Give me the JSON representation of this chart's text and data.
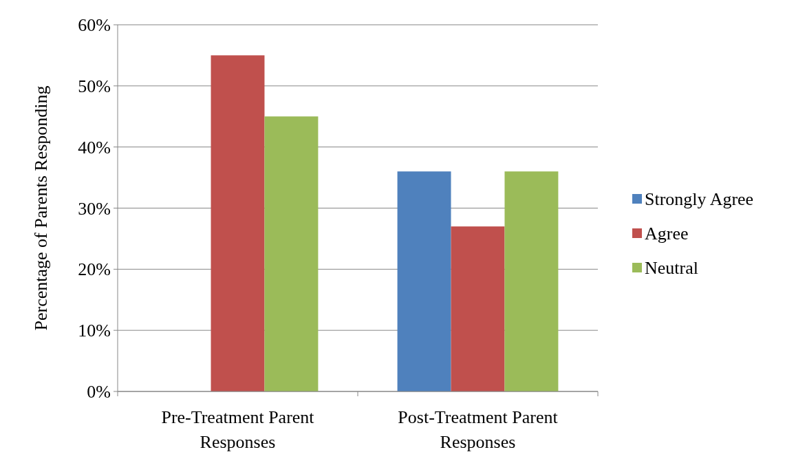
{
  "chart_data": {
    "type": "bar",
    "ylabel": "Percentage of Parents Responding",
    "categories": [
      "Pre-Treatment Parent Responses",
      "Post-Treatment Parent Responses"
    ],
    "series": [
      {
        "name": "Strongly Agree",
        "color": "#4f81bd",
        "values": [
          0,
          36
        ]
      },
      {
        "name": "Agree",
        "color": "#c0504d",
        "values": [
          55,
          27
        ]
      },
      {
        "name": "Neutral",
        "color": "#9bbb59",
        "values": [
          45,
          36
        ]
      }
    ],
    "ylim": [
      0,
      60
    ],
    "yticks": [
      {
        "value": 0,
        "label": "0%"
      },
      {
        "value": 10,
        "label": "10%"
      },
      {
        "value": 20,
        "label": "20%"
      },
      {
        "value": 30,
        "label": "30%"
      },
      {
        "value": 40,
        "label": "40%"
      },
      {
        "value": 50,
        "label": "50%"
      },
      {
        "value": 60,
        "label": "60%"
      }
    ],
    "grid": "y",
    "legend": "right"
  }
}
